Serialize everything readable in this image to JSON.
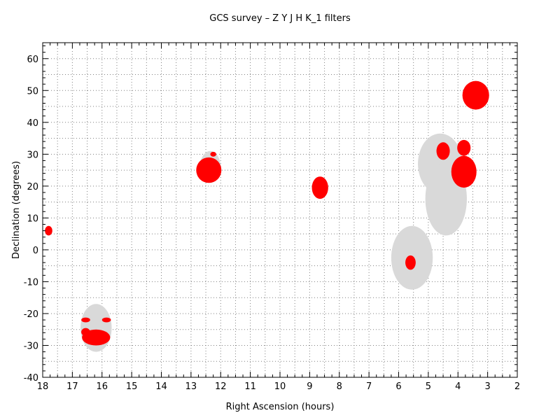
{
  "chart_data": {
    "type": "scatter",
    "title": "GCS survey – Z Y J H K_1  filters",
    "xlabel": "Right Ascension (hours)",
    "ylabel": "Declination (degrees)",
    "xlim": [
      18,
      2
    ],
    "ylim": [
      -40,
      65
    ],
    "x_ticks": [
      18,
      17,
      16,
      15,
      14,
      13,
      12,
      11,
      10,
      9,
      8,
      7,
      6,
      5,
      4,
      3,
      2
    ],
    "y_ticks": [
      -40,
      -30,
      -20,
      -10,
      0,
      10,
      20,
      30,
      40,
      50,
      60
    ],
    "grid": true,
    "colors": {
      "observed": "#ff0000",
      "planned": "#d9d9d9",
      "grid": "#808080"
    },
    "series": [
      {
        "kind": "planned_region",
        "regions": [
          {
            "ra": 16.2,
            "dec": -24.5,
            "ra_width": 1.05,
            "dec_height": 15
          },
          {
            "ra": 12.35,
            "dec": 26,
            "ra_width": 0.7,
            "dec_height": 10
          },
          {
            "ra": 5.55,
            "dec": -2.5,
            "ra_width": 1.4,
            "dec_height": 20
          },
          {
            "ra": 4.6,
            "dec": 27,
            "ra_width": 1.5,
            "dec_height": 19
          },
          {
            "ra": 4.4,
            "dec": 16,
            "ra_width": 1.4,
            "dec_height": 23
          }
        ]
      },
      {
        "kind": "observed_region",
        "regions": [
          {
            "ra": 17.8,
            "dec": 6,
            "ra_width": 0.25,
            "dec_height": 3
          },
          {
            "ra": 16.2,
            "dec": -27.5,
            "ra_width": 0.95,
            "dec_height": 5
          },
          {
            "ra": 16.55,
            "dec": -25.8,
            "ra_width": 0.3,
            "dec_height": 2.5
          },
          {
            "ra": 16.55,
            "dec": -22,
            "ra_width": 0.3,
            "dec_height": 1.5
          },
          {
            "ra": 15.85,
            "dec": -22,
            "ra_width": 0.3,
            "dec_height": 1.5
          },
          {
            "ra": 12.4,
            "dec": 25,
            "ra_width": 0.85,
            "dec_height": 8
          },
          {
            "ra": 12.25,
            "dec": 30,
            "ra_width": 0.2,
            "dec_height": 1.5
          },
          {
            "ra": 8.65,
            "dec": 19.5,
            "ra_width": 0.55,
            "dec_height": 7
          },
          {
            "ra": 5.6,
            "dec": -4,
            "ra_width": 0.35,
            "dec_height": 4.5
          },
          {
            "ra": 4.5,
            "dec": 31,
            "ra_width": 0.45,
            "dec_height": 5.5
          },
          {
            "ra": 3.8,
            "dec": 32,
            "ra_width": 0.45,
            "dec_height": 5
          },
          {
            "ra": 3.8,
            "dec": 24.5,
            "ra_width": 0.85,
            "dec_height": 10
          },
          {
            "ra": 3.4,
            "dec": 48.5,
            "ra_width": 0.9,
            "dec_height": 9
          }
        ]
      }
    ]
  }
}
